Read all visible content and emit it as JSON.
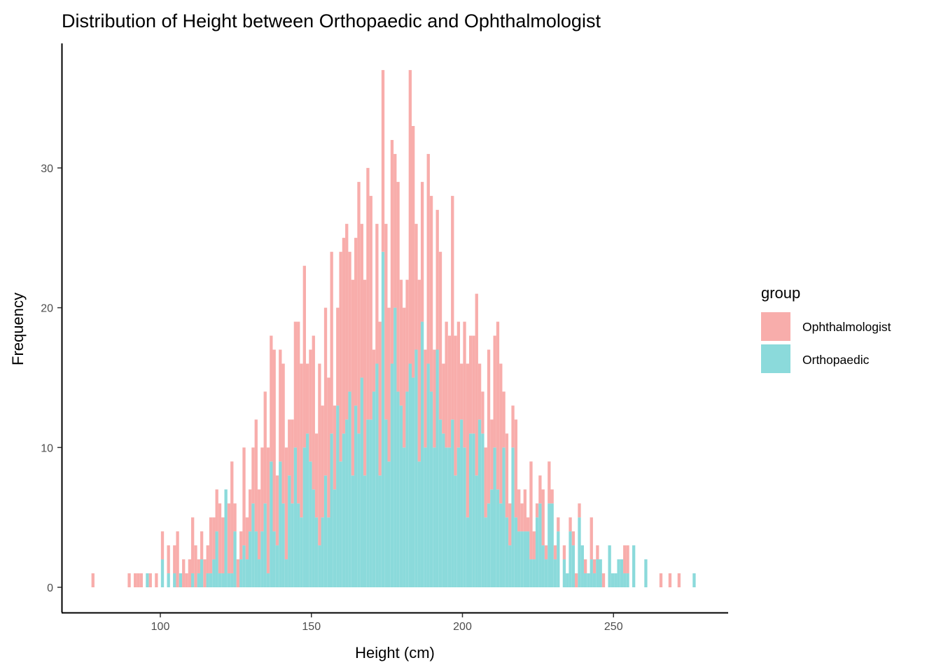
{
  "chart_data": {
    "type": "bar",
    "subtype": "stacked-histogram",
    "title": "Distribution of Height between Orthopaedic and Ophthalmologist",
    "xlabel": "Height (cm)",
    "ylabel": "Frequency",
    "xlim": [
      68,
      287
    ],
    "ylim": [
      -1.8,
      38.9
    ],
    "x_ticks": [
      100,
      150,
      200,
      250
    ],
    "y_ticks": [
      0,
      10,
      20,
      30
    ],
    "bin_start": 77.2,
    "bin_width": 1,
    "grid": false,
    "legend": {
      "title": "group",
      "placement": "right"
    },
    "series": [
      {
        "name": "Ophthalmologist",
        "color": "#F8ADAB",
        "values": [
          1,
          0,
          0,
          0,
          0,
          0,
          0,
          0,
          0,
          0,
          0,
          0,
          1,
          0,
          1,
          1,
          1,
          0,
          0,
          1,
          0,
          1,
          0,
          2,
          0,
          2,
          0,
          2,
          4,
          0,
          2,
          1,
          2,
          4,
          3,
          1,
          2,
          2,
          2,
          4,
          3,
          3,
          5,
          4,
          0,
          5,
          8,
          2,
          2,
          2,
          7,
          3,
          3,
          4,
          8,
          5,
          6,
          8,
          9,
          9,
          13,
          5,
          8,
          10,
          8,
          4,
          6,
          9,
          13,
          11,
          13,
          5,
          8,
          11,
          6,
          13,
          8,
          12,
          10,
          13,
          6,
          7,
          15,
          14,
          14,
          10,
          14,
          12,
          18,
          11,
          14,
          18,
          16,
          3,
          10,
          11,
          13,
          14,
          11,
          16,
          11,
          15,
          9,
          10,
          8,
          21,
          18,
          9,
          13,
          10,
          7,
          15,
          14,
          7,
          10,
          12,
          5,
          9,
          8,
          16,
          10,
          9,
          4,
          9,
          11,
          7,
          7,
          13,
          4,
          3,
          5,
          11,
          5,
          8,
          12,
          10,
          4,
          6,
          3,
          3,
          7,
          3,
          2,
          3,
          1,
          7,
          2,
          1,
          2,
          4,
          1,
          3,
          1,
          1,
          1,
          0,
          1,
          0,
          1,
          1,
          1,
          1,
          0,
          1,
          0,
          3,
          1,
          1,
          0,
          1,
          0,
          0,
          0,
          0,
          0,
          0,
          2,
          2,
          0,
          0,
          0,
          0,
          0,
          0,
          0,
          0,
          0,
          0,
          1,
          0,
          0,
          1,
          0,
          0,
          1,
          0,
          0,
          0,
          0,
          0
        ]
      },
      {
        "name": "Orthopaedic",
        "color": "#8BDADB",
        "values": [
          0,
          0,
          0,
          0,
          0,
          0,
          0,
          0,
          0,
          0,
          0,
          0,
          0,
          0,
          0,
          0,
          0,
          0,
          1,
          0,
          0,
          0,
          0,
          2,
          0,
          1,
          0,
          1,
          0,
          1,
          0,
          0,
          0,
          1,
          0,
          1,
          2,
          0,
          1,
          1,
          2,
          4,
          1,
          1,
          7,
          1,
          1,
          4,
          0,
          2,
          3,
          2,
          4,
          6,
          4,
          2,
          4,
          6,
          1,
          9,
          4,
          3,
          9,
          6,
          2,
          8,
          6,
          10,
          6,
          5,
          10,
          11,
          9,
          7,
          5,
          3,
          5,
          8,
          5,
          11,
          7,
          13,
          9,
          11,
          12,
          14,
          8,
          13,
          11,
          15,
          8,
          12,
          12,
          14,
          16,
          8,
          24,
          12,
          9,
          16,
          20,
          14,
          13,
          10,
          14,
          16,
          15,
          17,
          9,
          19,
          10,
          16,
          14,
          10,
          17,
          12,
          11,
          10,
          10,
          12,
          8,
          10,
          12,
          10,
          5,
          11,
          11,
          8,
          12,
          11,
          5,
          6,
          7,
          10,
          7,
          6,
          10,
          5,
          3,
          10,
          5,
          4,
          4,
          4,
          4,
          2,
          2,
          5,
          6,
          3,
          2,
          6,
          6,
          2,
          4,
          0,
          2,
          1,
          4,
          3,
          0,
          5,
          3,
          1,
          1,
          2,
          1,
          2,
          2,
          0,
          0,
          3,
          1,
          1,
          2,
          2,
          1,
          1,
          0,
          3,
          0,
          0,
          0,
          2,
          0,
          0,
          0,
          0,
          0,
          0,
          0,
          0,
          0,
          0,
          0,
          0,
          0,
          0,
          0,
          1
        ]
      }
    ]
  }
}
